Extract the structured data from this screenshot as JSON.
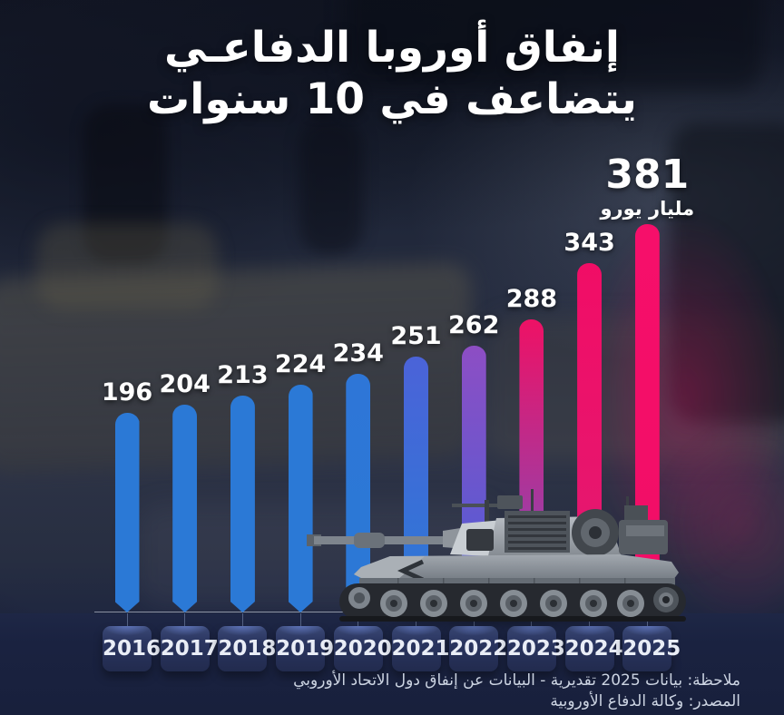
{
  "title": {
    "line1": "إنفاق أوروبا الدفاعـي",
    "line2": "يتضاعف في 10 سنوات"
  },
  "chart_data": {
    "type": "bar",
    "title": "إنفاق أوروبا الدفاعي يتضاعف في 10 سنوات",
    "unit": "مليار يورو",
    "categories": [
      "2016",
      "2017",
      "2018",
      "2019",
      "2020",
      "2021",
      "2022",
      "2023",
      "2024",
      "2025"
    ],
    "values": [
      196,
      204,
      213,
      224,
      234,
      251,
      262,
      288,
      343,
      381
    ],
    "ylim": [
      0,
      400
    ],
    "grid": false,
    "legend": "none",
    "highlight": {
      "year": "2025",
      "value": "381",
      "unit_label": "مليار يورو"
    },
    "bar_styles": [
      {
        "top": "#2b79d6",
        "bottom": "#2b79d6"
      },
      {
        "top": "#2b79d6",
        "bottom": "#2b79d6"
      },
      {
        "top": "#2b79d6",
        "bottom": "#2b79d6"
      },
      {
        "top": "#2b79d6",
        "bottom": "#2b79d6"
      },
      {
        "top": "#2e76d7",
        "bottom": "#2b79d6"
      },
      {
        "top": "#4b63d8",
        "bottom": "#2b79d6"
      },
      {
        "top": "#8d4ec4",
        "bottom": "#4a5ed6"
      },
      {
        "top": "#ee1165",
        "bottom": "#7b50c0"
      },
      {
        "top": "#f10d66",
        "bottom": "#e21a71"
      },
      {
        "top": "#f60f6a",
        "bottom": "#f10d66"
      }
    ]
  },
  "footer": {
    "note": "ملاحظة: بيانات 2025 تقديرية - البيانات عن إنفاق دول الاتحاد الأوروبي",
    "source": "المصدر: وكالة الدفاع الأوروبية"
  },
  "colors": {
    "blue": "#2b79d6",
    "purple": "#8d4ec4",
    "pink": "#f10d66",
    "background": "#1d2438",
    "bottom_band": "#1a2240",
    "badge_fill": "#2a3560",
    "badge_text": "#e9edf6",
    "value_label": "#ffffff",
    "note_text": "#ccd4e2",
    "baseline": "#e1e8f5"
  },
  "illustration": {
    "tank": "battle-tank-side-view"
  }
}
